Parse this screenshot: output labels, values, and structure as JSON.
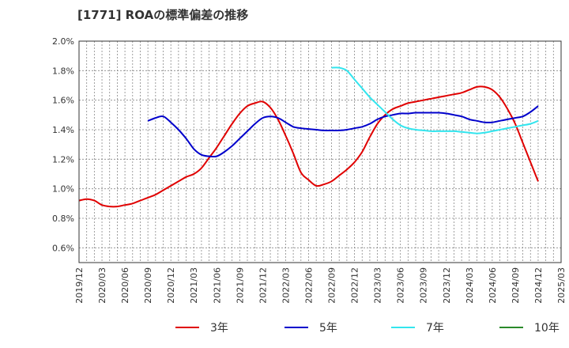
{
  "title": "[1771]  ROAの標準偏差の推移",
  "colors": {
    "s3": "#e00000",
    "s5": "#0000cc",
    "s7": "#33e5ee",
    "s10": "#2a8a2a"
  },
  "chart_data": {
    "type": "line",
    "title": "[1771]  ROAの標準偏差の推移",
    "xlabel": "",
    "ylabel": "",
    "ylim": [
      0.5,
      2.0
    ],
    "y_ticks": [
      "2.0%",
      "1.8%",
      "1.6%",
      "1.4%",
      "1.2%",
      "1.0%",
      "0.8%",
      "0.6%"
    ],
    "x_ticks": [
      "2019/12",
      "2020/03",
      "2020/06",
      "2020/09",
      "2020/12",
      "2021/03",
      "2021/06",
      "2021/09",
      "2021/12",
      "2022/03",
      "2022/06",
      "2022/09",
      "2022/12",
      "2023/03",
      "2023/06",
      "2023/09",
      "2023/12",
      "2024/03",
      "2024/06",
      "2024/09",
      "2024/12",
      "2025/03"
    ],
    "grid": true,
    "legend_position": "bottom",
    "series": [
      {
        "name": "3年",
        "color": "#e00000",
        "points": [
          [
            "2019/12",
            0.92
          ],
          [
            "2020/01",
            0.93
          ],
          [
            "2020/02",
            0.92
          ],
          [
            "2020/03",
            0.89
          ],
          [
            "2020/04",
            0.88
          ],
          [
            "2020/05",
            0.88
          ],
          [
            "2020/06",
            0.89
          ],
          [
            "2020/07",
            0.9
          ],
          [
            "2020/08",
            0.92
          ],
          [
            "2020/09",
            0.94
          ],
          [
            "2020/10",
            0.96
          ],
          [
            "2020/11",
            0.99
          ],
          [
            "2020/12",
            1.02
          ],
          [
            "2021/01",
            1.05
          ],
          [
            "2021/02",
            1.08
          ],
          [
            "2021/03",
            1.1
          ],
          [
            "2021/04",
            1.14
          ],
          [
            "2021/05",
            1.21
          ],
          [
            "2021/06",
            1.28
          ],
          [
            "2021/07",
            1.36
          ],
          [
            "2021/08",
            1.44
          ],
          [
            "2021/09",
            1.51
          ],
          [
            "2021/10",
            1.56
          ],
          [
            "2021/11",
            1.58
          ],
          [
            "2021/12",
            1.59
          ],
          [
            "2022/01",
            1.55
          ],
          [
            "2022/02",
            1.47
          ],
          [
            "2022/03",
            1.36
          ],
          [
            "2022/04",
            1.24
          ],
          [
            "2022/05",
            1.11
          ],
          [
            "2022/06",
            1.06
          ],
          [
            "2022/07",
            1.02
          ],
          [
            "2022/08",
            1.03
          ],
          [
            "2022/09",
            1.05
          ],
          [
            "2022/10",
            1.09
          ],
          [
            "2022/11",
            1.13
          ],
          [
            "2022/12",
            1.18
          ],
          [
            "2023/01",
            1.25
          ],
          [
            "2023/02",
            1.35
          ],
          [
            "2023/03",
            1.44
          ],
          [
            "2023/04",
            1.5
          ],
          [
            "2023/05",
            1.54
          ],
          [
            "2023/06",
            1.56
          ],
          [
            "2023/07",
            1.58
          ],
          [
            "2023/08",
            1.59
          ],
          [
            "2023/09",
            1.6
          ],
          [
            "2023/10",
            1.61
          ],
          [
            "2023/11",
            1.62
          ],
          [
            "2023/12",
            1.63
          ],
          [
            "2024/01",
            1.64
          ],
          [
            "2024/02",
            1.65
          ],
          [
            "2024/03",
            1.67
          ],
          [
            "2024/04",
            1.69
          ],
          [
            "2024/05",
            1.69
          ],
          [
            "2024/06",
            1.67
          ],
          [
            "2024/07",
            1.62
          ],
          [
            "2024/08",
            1.54
          ],
          [
            "2024/09",
            1.44
          ],
          [
            "2024/10",
            1.31
          ],
          [
            "2024/11",
            1.18
          ],
          [
            "2024/12",
            1.05
          ]
        ]
      },
      {
        "name": "5年",
        "color": "#0000cc",
        "points": [
          [
            "2020/09",
            1.46
          ],
          [
            "2020/10",
            1.48
          ],
          [
            "2020/11",
            1.49
          ],
          [
            "2020/12",
            1.45
          ],
          [
            "2021/01",
            1.4
          ],
          [
            "2021/02",
            1.34
          ],
          [
            "2021/03",
            1.27
          ],
          [
            "2021/04",
            1.23
          ],
          [
            "2021/05",
            1.22
          ],
          [
            "2021/06",
            1.22
          ],
          [
            "2021/07",
            1.25
          ],
          [
            "2021/08",
            1.29
          ],
          [
            "2021/09",
            1.34
          ],
          [
            "2021/10",
            1.39
          ],
          [
            "2021/11",
            1.44
          ],
          [
            "2021/12",
            1.48
          ],
          [
            "2022/01",
            1.49
          ],
          [
            "2022/02",
            1.48
          ],
          [
            "2022/03",
            1.45
          ],
          [
            "2022/04",
            1.42
          ],
          [
            "2022/05",
            1.41
          ],
          [
            "2022/06",
            1.405
          ],
          [
            "2022/07",
            1.4
          ],
          [
            "2022/08",
            1.395
          ],
          [
            "2022/09",
            1.395
          ],
          [
            "2022/10",
            1.395
          ],
          [
            "2022/11",
            1.4
          ],
          [
            "2022/12",
            1.41
          ],
          [
            "2023/01",
            1.42
          ],
          [
            "2023/02",
            1.44
          ],
          [
            "2023/03",
            1.47
          ],
          [
            "2023/04",
            1.49
          ],
          [
            "2023/05",
            1.5
          ],
          [
            "2023/06",
            1.51
          ],
          [
            "2023/07",
            1.51
          ],
          [
            "2023/08",
            1.515
          ],
          [
            "2023/09",
            1.515
          ],
          [
            "2023/10",
            1.515
          ],
          [
            "2023/11",
            1.515
          ],
          [
            "2023/12",
            1.51
          ],
          [
            "2024/01",
            1.5
          ],
          [
            "2024/02",
            1.49
          ],
          [
            "2024/03",
            1.47
          ],
          [
            "2024/04",
            1.46
          ],
          [
            "2024/05",
            1.45
          ],
          [
            "2024/06",
            1.45
          ],
          [
            "2024/07",
            1.46
          ],
          [
            "2024/08",
            1.47
          ],
          [
            "2024/09",
            1.48
          ],
          [
            "2024/10",
            1.49
          ],
          [
            "2024/11",
            1.52
          ],
          [
            "2024/12",
            1.56
          ]
        ]
      },
      {
        "name": "7年",
        "color": "#33e5ee",
        "points": [
          [
            "2022/09",
            1.82
          ],
          [
            "2022/10",
            1.82
          ],
          [
            "2022/11",
            1.8
          ],
          [
            "2022/12",
            1.74
          ],
          [
            "2023/01",
            1.68
          ],
          [
            "2023/02",
            1.62
          ],
          [
            "2023/03",
            1.57
          ],
          [
            "2023/04",
            1.52
          ],
          [
            "2023/05",
            1.47
          ],
          [
            "2023/06",
            1.43
          ],
          [
            "2023/07",
            1.41
          ],
          [
            "2023/08",
            1.4
          ],
          [
            "2023/09",
            1.395
          ],
          [
            "2023/10",
            1.39
          ],
          [
            "2023/11",
            1.39
          ],
          [
            "2023/12",
            1.39
          ],
          [
            "2024/01",
            1.39
          ],
          [
            "2024/02",
            1.385
          ],
          [
            "2024/03",
            1.38
          ],
          [
            "2024/04",
            1.375
          ],
          [
            "2024/05",
            1.38
          ],
          [
            "2024/06",
            1.39
          ],
          [
            "2024/07",
            1.4
          ],
          [
            "2024/08",
            1.41
          ],
          [
            "2024/09",
            1.42
          ],
          [
            "2024/10",
            1.43
          ],
          [
            "2024/11",
            1.44
          ],
          [
            "2024/12",
            1.46
          ]
        ]
      },
      {
        "name": "10年",
        "color": "#2a8a2a",
        "points": []
      }
    ]
  }
}
